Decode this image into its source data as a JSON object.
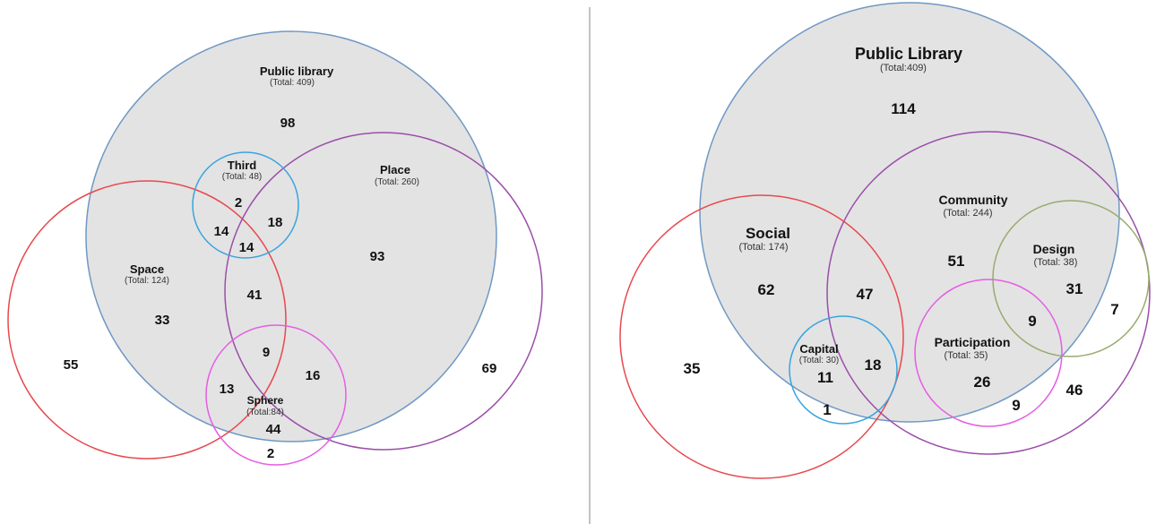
{
  "colors": {
    "public_library_fill": "#e3e3e3",
    "public_library_stroke": "#6f98c4",
    "space_stroke": "#e8484e",
    "third_stroke": "#38a4df",
    "place_stroke": "#9a4ea8",
    "sphere_stroke": "#e45ee3",
    "social_stroke": "#e8484e",
    "community_stroke": "#9a4ea8",
    "design_stroke": "#98ab6c",
    "participation_stroke": "#e45ee3",
    "capital_stroke": "#38a4df",
    "divider": "#888888"
  },
  "left_diagram": {
    "sets": {
      "public_library": {
        "name": "Public library",
        "total": "(Total: 409)"
      },
      "third": {
        "name": "Third",
        "total": "(Total: 48)"
      },
      "place": {
        "name": "Place",
        "total": "(Total: 260)"
      },
      "space": {
        "name": "Space",
        "total": "(Total: 124)"
      },
      "sphere": {
        "name": "Sphere",
        "total": "(Total:84)"
      }
    },
    "counts": {
      "library_only": "98",
      "third_only": "2",
      "third_place": "18",
      "third_space": "14",
      "third_space_place": "14",
      "place_only": "93",
      "space_only_in_library": "33",
      "space_place": "41",
      "space_place_sphere": "9",
      "place_sphere": "16",
      "space_sphere": "13",
      "sphere_only": "44",
      "sphere_outside": "2",
      "space_outside": "55",
      "place_outside": "69"
    }
  },
  "right_diagram": {
    "sets": {
      "public_library": {
        "name": "Public Library",
        "total": "(Total:409)"
      },
      "community": {
        "name": "Community",
        "total": "(Total: 244)"
      },
      "social": {
        "name": "Social",
        "total": "(Total: 174)"
      },
      "design": {
        "name": "Design",
        "total": "(Total: 38)"
      },
      "participation": {
        "name": "Participation",
        "total": "(Total: 35)"
      },
      "capital": {
        "name": "Capital",
        "total": "(Total: 30)"
      }
    },
    "counts": {
      "library_only": "114",
      "community_only": "51",
      "social_only": "62",
      "social_community": "47",
      "design_only": "31",
      "design_outside": "7",
      "design_participation": "9",
      "participation_only": "26",
      "participation_outside": "9",
      "community_outside": "46",
      "social_outside": "35",
      "capital_social": "11",
      "capital_community": "18",
      "capital_outside": "1"
    }
  }
}
